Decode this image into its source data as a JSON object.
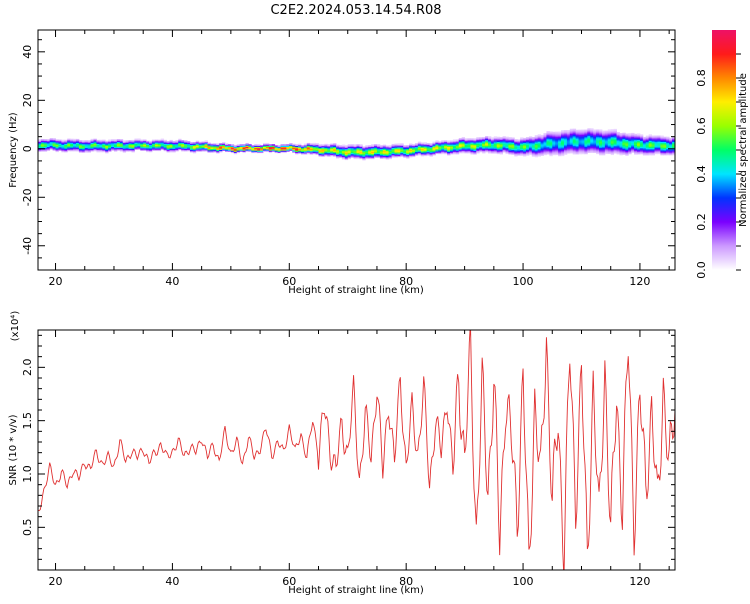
{
  "title": "C2E2.2024.053.14.54.R08",
  "chart_data": [
    {
      "type": "heatmap",
      "xlabel": "Height of straight line (km)",
      "ylabel": "Frequency (Hz)",
      "xlim": [
        17,
        126
      ],
      "ylim": [
        -50,
        49
      ],
      "xticks": [
        20,
        40,
        60,
        80,
        100,
        120
      ],
      "yticks": [
        -40,
        -20,
        0,
        20,
        40
      ],
      "colorbar": {
        "label": "Normalized spectral amplitude",
        "range": [
          0,
          1
        ],
        "ticks": [
          0.0,
          0.2,
          0.4,
          0.6,
          0.8
        ],
        "colors": [
          "#ffffff",
          "#cc99ff",
          "#7a00ff",
          "#0033ff",
          "#00e5ff",
          "#00ff66",
          "#99ff00",
          "#ffee00",
          "#ff8800",
          "#ff1a1a",
          "#ee1166"
        ]
      },
      "ridge": {
        "x": [
          17,
          25,
          35,
          42,
          50,
          60,
          65,
          70,
          75,
          80,
          85,
          90,
          95,
          100,
          105,
          110,
          115,
          120,
          126
        ],
        "center_hz": [
          1.5,
          1.0,
          1.2,
          1.0,
          0.0,
          0.0,
          -0.5,
          -1.5,
          -1.5,
          -1.0,
          0.0,
          1.0,
          1.5,
          0.5,
          2.0,
          3.0,
          2.5,
          1.5,
          1.0
        ],
        "halfwidth_hz": [
          2.0,
          2.0,
          1.8,
          1.8,
          1.2,
          1.2,
          1.8,
          2.2,
          2.2,
          2.0,
          2.0,
          2.4,
          2.6,
          2.8,
          4.0,
          4.2,
          4.0,
          3.2,
          3.0
        ],
        "peak_amplitude": [
          0.6,
          0.6,
          0.65,
          0.65,
          1.0,
          1.0,
          0.8,
          0.75,
          0.75,
          0.75,
          0.75,
          0.7,
          0.65,
          0.6,
          0.5,
          0.5,
          0.55,
          0.6,
          0.6
        ]
      }
    },
    {
      "type": "line",
      "xlabel": "Height of straight line (km)",
      "ylabel": "SNR (10 * v/v)",
      "y_multiplier": "(x10⁴)",
      "xlim": [
        17,
        126
      ],
      "ylim": [
        0.1,
        2.35
      ],
      "xticks": [
        20,
        40,
        60,
        80,
        100,
        120
      ],
      "yticks": [
        0.5,
        1.0,
        1.5,
        2.0
      ],
      "color": "#e03030",
      "series": [
        {
          "x": [
            17,
            18,
            19,
            20,
            21,
            22,
            23,
            24,
            25,
            26,
            27,
            28,
            29,
            30,
            31,
            32,
            33,
            34,
            35,
            36,
            37,
            38,
            39,
            40,
            41,
            42,
            43,
            44,
            45,
            46,
            47,
            48,
            49,
            50,
            51,
            52,
            53,
            54,
            55,
            56,
            57,
            58,
            59,
            60,
            61,
            62,
            63,
            64,
            65,
            66,
            67,
            68,
            69,
            70,
            71,
            72,
            73,
            74,
            75,
            76,
            77,
            78,
            79,
            80,
            81,
            82,
            83,
            84,
            85,
            86,
            87,
            88,
            89,
            90,
            91,
            92,
            93,
            94,
            95,
            96,
            97,
            98,
            99,
            100,
            101,
            102,
            103,
            104,
            105,
            106,
            107,
            108,
            109,
            110,
            111,
            112,
            113,
            114,
            115,
            116,
            117,
            118,
            119,
            120,
            121,
            122,
            123,
            124,
            125,
            126
          ],
          "values": [
            0.62,
            0.85,
            1.05,
            0.9,
            1.02,
            0.88,
            1.05,
            0.95,
            1.12,
            1.05,
            1.2,
            1.1,
            1.15,
            1.08,
            1.3,
            1.12,
            1.22,
            1.15,
            1.25,
            1.1,
            1.2,
            1.28,
            1.15,
            1.22,
            1.3,
            1.18,
            1.25,
            1.2,
            1.35,
            1.15,
            1.28,
            1.12,
            1.4,
            1.2,
            1.3,
            1.1,
            1.35,
            1.15,
            1.25,
            1.42,
            1.18,
            1.3,
            1.2,
            1.45,
            1.2,
            1.38,
            1.15,
            1.5,
            1.2,
            1.6,
            1.25,
            1.05,
            1.45,
            1.2,
            1.75,
            0.95,
            1.55,
            1.15,
            1.85,
            1.0,
            1.7,
            1.1,
            1.9,
            1.05,
            1.6,
            1.2,
            1.8,
            0.9,
            1.5,
            1.2,
            1.75,
            1.0,
            1.95,
            1.1,
            2.15,
            0.45,
            1.8,
            0.85,
            1.9,
            0.35,
            1.75,
            1.3,
            0.6,
            1.9,
            0.1,
            1.7,
            0.9,
            2.3,
            0.7,
            1.5,
            0.3,
            2.1,
            0.75,
            1.95,
            0.2,
            1.85,
            0.5,
            2.05,
            0.4,
            1.75,
            0.7,
            2.2,
            0.55,
            1.7,
            0.9,
            1.6,
            0.65,
            1.85,
            1.0,
            1.7
          ]
        }
      ]
    }
  ]
}
